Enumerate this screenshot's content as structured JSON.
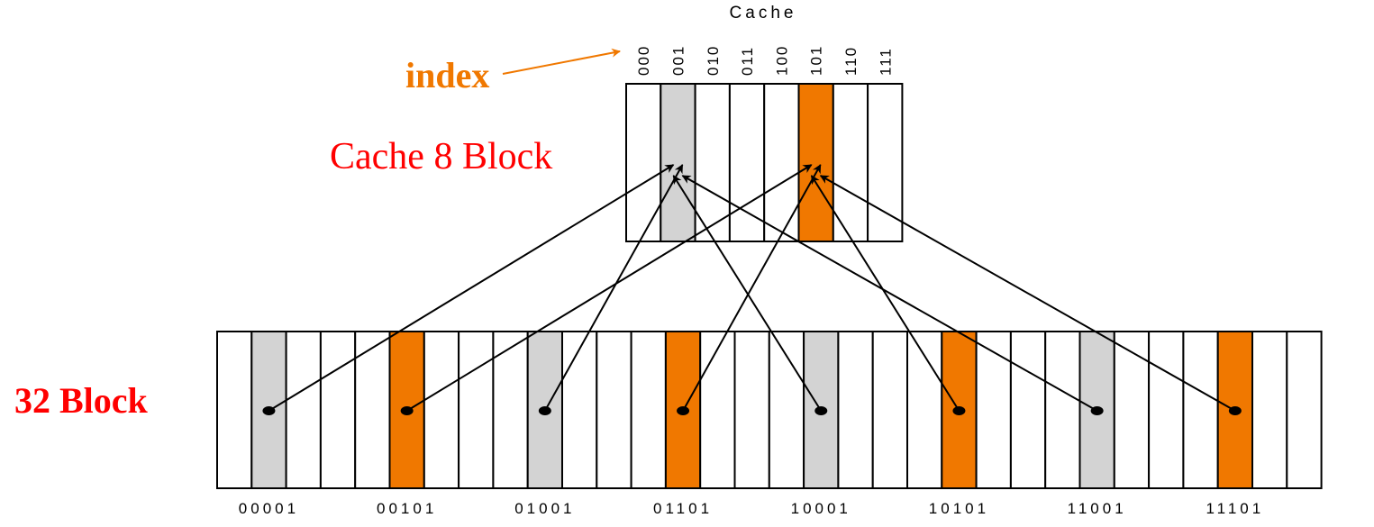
{
  "title": "Cache",
  "index_label": "index",
  "cache_label": "Cache 8 Block",
  "memory_label": "32 Block",
  "cache_indices": [
    "000",
    "001",
    "010",
    "011",
    "100",
    "101",
    "110",
    "111"
  ],
  "cache_highlight": {
    "1": "gray",
    "5": "orange"
  },
  "memory_block_count": 32,
  "mappings": [
    {
      "address": "00001",
      "memory_block": 1,
      "cache_index": 1,
      "color": "gray"
    },
    {
      "address": "00101",
      "memory_block": 5,
      "cache_index": 5,
      "color": "orange"
    },
    {
      "address": "01001",
      "memory_block": 9,
      "cache_index": 1,
      "color": "gray"
    },
    {
      "address": "01101",
      "memory_block": 13,
      "cache_index": 5,
      "color": "orange"
    },
    {
      "address": "10001",
      "memory_block": 17,
      "cache_index": 1,
      "color": "gray"
    },
    {
      "address": "10101",
      "memory_block": 21,
      "cache_index": 5,
      "color": "orange"
    },
    {
      "address": "11001",
      "memory_block": 25,
      "cache_index": 1,
      "color": "gray"
    },
    {
      "address": "11101",
      "memory_block": 29,
      "cache_index": 5,
      "color": "orange"
    }
  ],
  "colors": {
    "gray": "#d3d3d3",
    "orange": "#f07800",
    "index_text": "#f07800",
    "label_red": "#ff0000",
    "white": "#ffffff",
    "line": "#000000"
  }
}
